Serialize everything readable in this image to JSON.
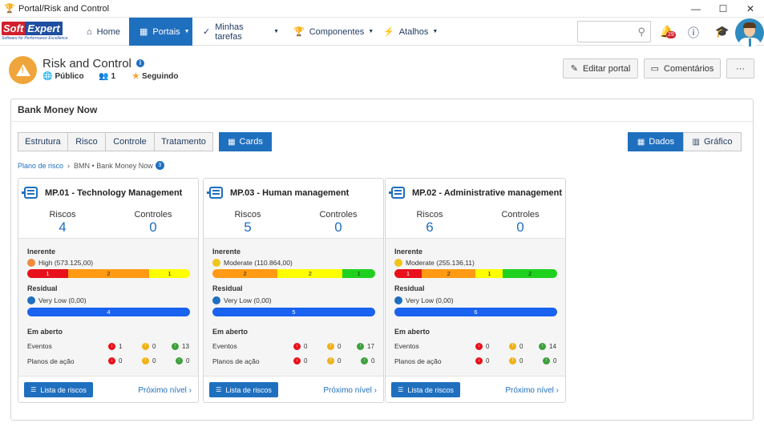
{
  "window": {
    "title": "Portal/Risk and Control",
    "controls": [
      "—",
      "☐",
      "✕"
    ]
  },
  "nav": {
    "logo_soft": "Soft",
    "logo_expert": "Expert",
    "logo_tagline": "Software for Performance Excellence",
    "items": [
      {
        "label": "Home",
        "icon": "home-icon"
      },
      {
        "label": "Portais",
        "icon": "grid-icon"
      },
      {
        "label": "Minhas tarefas",
        "icon": "check-icon"
      },
      {
        "label": "Componentes",
        "icon": "trophy-icon"
      },
      {
        "label": "Atalhos",
        "icon": "bolt-icon"
      }
    ],
    "search_placeholder": "",
    "notif_count": "29"
  },
  "portal": {
    "title": "Risk and Control",
    "visibility": "Público",
    "members": "1",
    "following": "Seguindo",
    "edit_label": "Editar portal",
    "comments_label": "Comentários",
    "more_label": "···"
  },
  "panel": {
    "title": "Bank Money Now",
    "tabs": [
      "Estrutura",
      "Risco",
      "Controle",
      "Tratamento"
    ],
    "cards_tab": "Cards",
    "dados_tab": "Dados",
    "grafico_tab": "Gráfico",
    "breadcrumb": {
      "link": "Plano de risco",
      "sep": "›",
      "current": "BMN • Bank Money Now",
      "count": "3"
    }
  },
  "labels": {
    "riscos": "Riscos",
    "controles": "Controles",
    "inerente": "Inerente",
    "residual": "Residual",
    "em_aberto": "Em aberto",
    "eventos": "Eventos",
    "planos": "Planos de ação",
    "lista": "Lista de riscos",
    "proximo": "Próximo nível ›"
  },
  "colors": {
    "red": "#e8111b",
    "orange": "#ff9a14",
    "yellow": "#ffff00",
    "green": "#1fd11f",
    "blue": "#1a62f0",
    "face_orange": "#f08a3c",
    "face_yellow": "#f0c51a",
    "face_blue": "#1f6fbf"
  },
  "cards": [
    {
      "title": "MP.01 - Technology Management",
      "riscos": "4",
      "controles": "0",
      "inerente_text": "High (573.125,00)",
      "inerente_face": "face_orange",
      "inerente_bar": [
        {
          "v": "1",
          "c": "red",
          "w": 1
        },
        {
          "v": "2",
          "c": "orange",
          "w": 2
        },
        {
          "v": "1",
          "c": "yellow",
          "w": 1
        }
      ],
      "residual_text": "Very Low (0,00)",
      "residual_bar": [
        {
          "v": "4",
          "c": "blue",
          "w": 4
        }
      ],
      "eventos": [
        "1",
        "0",
        "13"
      ],
      "planos": [
        "0",
        "0",
        "0"
      ]
    },
    {
      "title": "MP.03 - Human management",
      "riscos": "5",
      "controles": "0",
      "inerente_text": "Moderate (110.864,00)",
      "inerente_face": "face_yellow",
      "inerente_bar": [
        {
          "v": "2",
          "c": "orange",
          "w": 2
        },
        {
          "v": "2",
          "c": "yellow",
          "w": 2
        },
        {
          "v": "1",
          "c": "green",
          "w": 1
        }
      ],
      "residual_text": "Very Low (0,00)",
      "residual_bar": [
        {
          "v": "5",
          "c": "blue",
          "w": 5
        }
      ],
      "eventos": [
        "0",
        "0",
        "17"
      ],
      "planos": [
        "0",
        "0",
        "0"
      ]
    },
    {
      "title": "MP.02 - Administrative management",
      "riscos": "6",
      "controles": "0",
      "inerente_text": "Moderate (255.136,11)",
      "inerente_face": "face_yellow",
      "inerente_bar": [
        {
          "v": "1",
          "c": "red",
          "w": 1
        },
        {
          "v": "2",
          "c": "orange",
          "w": 2
        },
        {
          "v": "1",
          "c": "yellow",
          "w": 1
        },
        {
          "v": "2",
          "c": "green",
          "w": 2
        }
      ],
      "residual_text": "Very Low (0,00)",
      "residual_bar": [
        {
          "v": "6",
          "c": "blue",
          "w": 6
        }
      ],
      "eventos": [
        "0",
        "0",
        "14"
      ],
      "planos": [
        "0",
        "0",
        "0"
      ]
    }
  ]
}
